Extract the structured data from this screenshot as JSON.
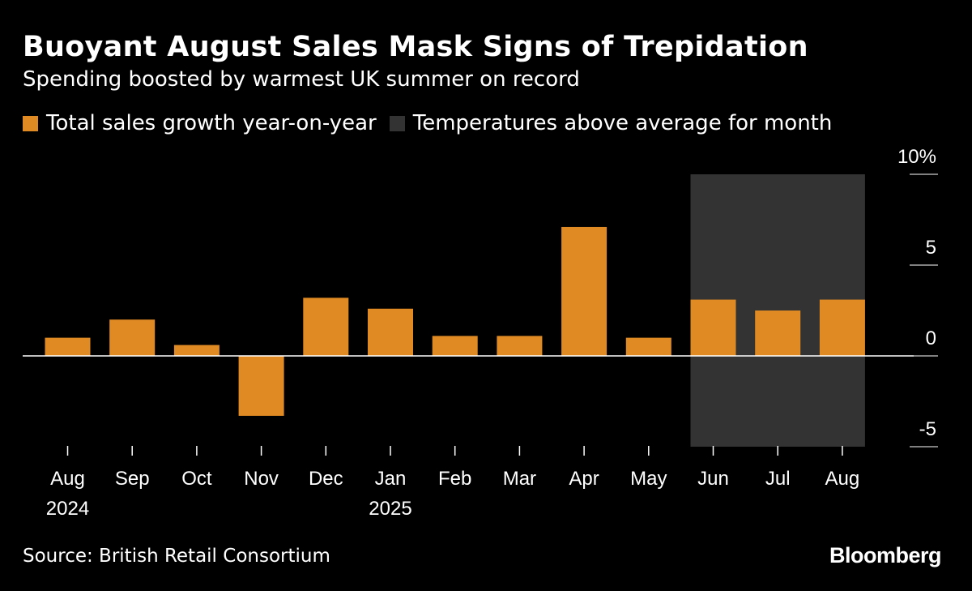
{
  "chart_data": {
    "type": "bar",
    "title": "Buoyant August Sales Mask Signs of Trepidation",
    "subtitle": "Spending boosted by warmest UK summer on record",
    "categories": [
      "Aug",
      "Sep",
      "Oct",
      "Nov",
      "Dec",
      "Jan",
      "Feb",
      "Mar",
      "Apr",
      "May",
      "Jun",
      "Jul",
      "Aug"
    ],
    "year_labels": [
      "2024",
      "",
      "",
      "",
      "",
      "2025",
      "",
      "",
      "",
      "",
      "",
      "",
      ""
    ],
    "series": [
      {
        "name": "Total sales growth year-on-year",
        "values": [
          1.0,
          2.0,
          0.6,
          -3.3,
          3.2,
          2.6,
          1.1,
          1.1,
          7.1,
          1.0,
          3.1,
          2.5,
          3.1
        ],
        "color": "#E08A23"
      }
    ],
    "shaded_region": {
      "label": "Temperatures above average for month",
      "categories": [
        "Jun",
        "Jul",
        "Aug"
      ],
      "color": "#333333"
    },
    "ylim": [
      -5,
      10
    ],
    "yticks": [
      -5,
      0,
      5,
      10
    ],
    "ytick_labels": [
      "-5",
      "0",
      "5",
      "10%"
    ],
    "xlabel": "",
    "ylabel": ""
  },
  "legend": {
    "sales_label": "Total sales growth year-on-year",
    "temp_label": "Temperatures above average for month"
  },
  "source": "Source: British Retail Consortium",
  "brand": "Bloomberg"
}
